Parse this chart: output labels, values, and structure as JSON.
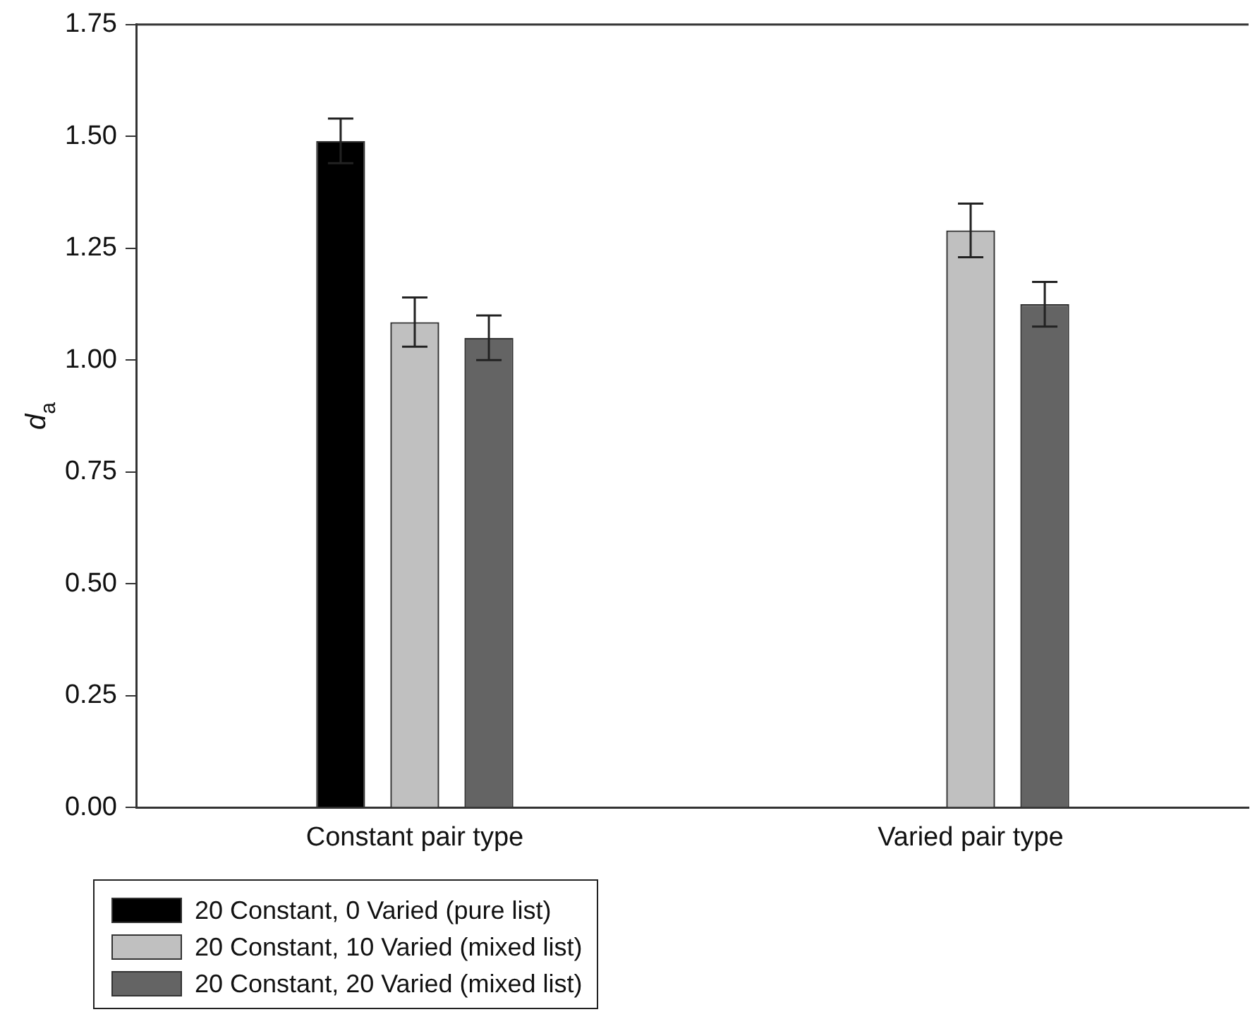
{
  "chart_data": {
    "type": "bar",
    "ylabel": "d$_{a}$",
    "categories": [
      "Constant pair type",
      "Varied pair type"
    ],
    "series": [
      {
        "name": "20 Constant, 0 Varied (pure list)",
        "color": "#000000",
        "values": [
          1.49,
          null
        ],
        "errors": [
          0.05,
          null
        ]
      },
      {
        "name": "20 Constant, 10 Varied (mixed list)",
        "color": "#c0c0c0",
        "values": [
          1.085,
          1.29
        ],
        "errors": [
          0.055,
          0.06
        ]
      },
      {
        "name": "20 Constant, 20 Varied (mixed list)",
        "color": "#646464",
        "values": [
          1.05,
          1.125
        ],
        "errors": [
          0.05,
          0.05
        ]
      }
    ],
    "ylim": [
      0,
      1.75
    ],
    "yticks": [
      {
        "value": 0,
        "label": "0.00"
      },
      {
        "value": 0.25,
        "label": "0.25"
      },
      {
        "value": 0.5,
        "label": "0.50"
      },
      {
        "value": 0.75,
        "label": "0.75"
      },
      {
        "value": 1,
        "label": "1.00"
      },
      {
        "value": 1.25,
        "label": "1.25"
      },
      {
        "value": 1.5,
        "label": "1.50"
      },
      {
        "value": 1.75,
        "label": "1.75"
      }
    ],
    "grid": false,
    "legend": "bottom left"
  }
}
